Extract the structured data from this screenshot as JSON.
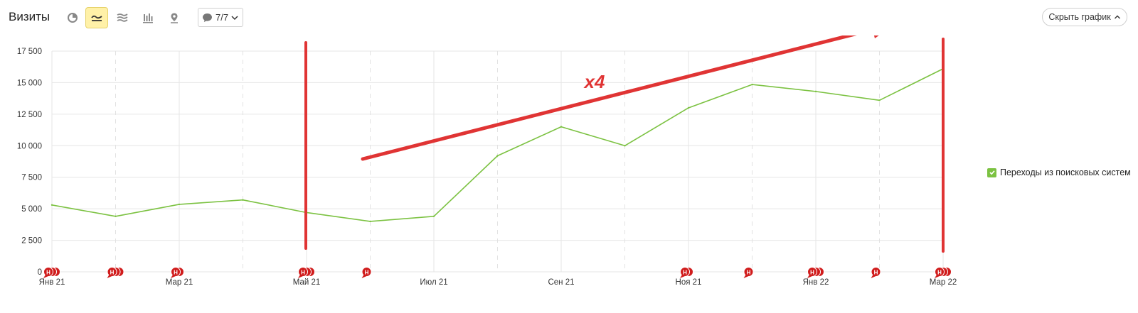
{
  "header": {
    "title": "Визиты",
    "comments_count": "7/7",
    "hide_chart_label": "Скрыть график"
  },
  "legend": {
    "label": "Переходы из поисковых систем",
    "color": "#7cc242"
  },
  "annotation": {
    "label": "x4",
    "color": "#e03434"
  },
  "chart_data": {
    "type": "line",
    "title": "",
    "xlabel": "",
    "ylabel": "",
    "ylim": [
      0,
      17500
    ],
    "yticks": [
      0,
      2500,
      5000,
      7500,
      10000,
      12500,
      15000,
      17500
    ],
    "ytick_labels": [
      "0",
      "2 500",
      "5 000",
      "7 500",
      "10 000",
      "12 500",
      "15 000",
      "17 500"
    ],
    "x": [
      "2021-01",
      "2021-02",
      "2021-03",
      "2021-04",
      "2021-05",
      "2021-06",
      "2021-07",
      "2021-08",
      "2021-09",
      "2021-10",
      "2021-11",
      "2021-12",
      "2022-01",
      "2022-02",
      "2022-03"
    ],
    "xtick_labels": [
      {
        "month": "2021-01",
        "label": "Янв 21"
      },
      {
        "month": "2021-03",
        "label": "Мар 21"
      },
      {
        "month": "2021-05",
        "label": "Май 21"
      },
      {
        "month": "2021-07",
        "label": "Июл 21"
      },
      {
        "month": "2021-09",
        "label": "Сен 21"
      },
      {
        "month": "2021-11",
        "label": "Ноя 21"
      },
      {
        "month": "2022-01",
        "label": "Янв 22"
      },
      {
        "month": "2022-03",
        "label": "Мар 22"
      }
    ],
    "grid": true,
    "legend_position": "right",
    "series": [
      {
        "name": "Переходы из поисковых систем",
        "color": "#7cc242",
        "values": [
          5300,
          4400,
          5350,
          5700,
          4700,
          4000,
          4400,
          9200,
          11500,
          10000,
          13000,
          14850,
          14300,
          13600,
          16100
        ]
      }
    ],
    "event_markers": [
      {
        "month": "2021-01",
        "count": 3,
        "label": "H"
      },
      {
        "month": "2021-02",
        "count": 3,
        "label": "H"
      },
      {
        "month": "2021-03",
        "count": 2,
        "label": "H"
      },
      {
        "month": "2021-05",
        "count": 3,
        "label": "H"
      },
      {
        "month": "2021-06",
        "count": 1,
        "label": "H"
      },
      {
        "month": "2021-11",
        "count": 2,
        "label": "H"
      },
      {
        "month": "2021-12",
        "count": 1,
        "label": "H"
      },
      {
        "month": "2022-01",
        "count": 3,
        "label": "H"
      },
      {
        "month": "2022-02",
        "count": 1,
        "label": "H"
      },
      {
        "month": "2022-03",
        "count": 3,
        "label": "H"
      }
    ]
  }
}
